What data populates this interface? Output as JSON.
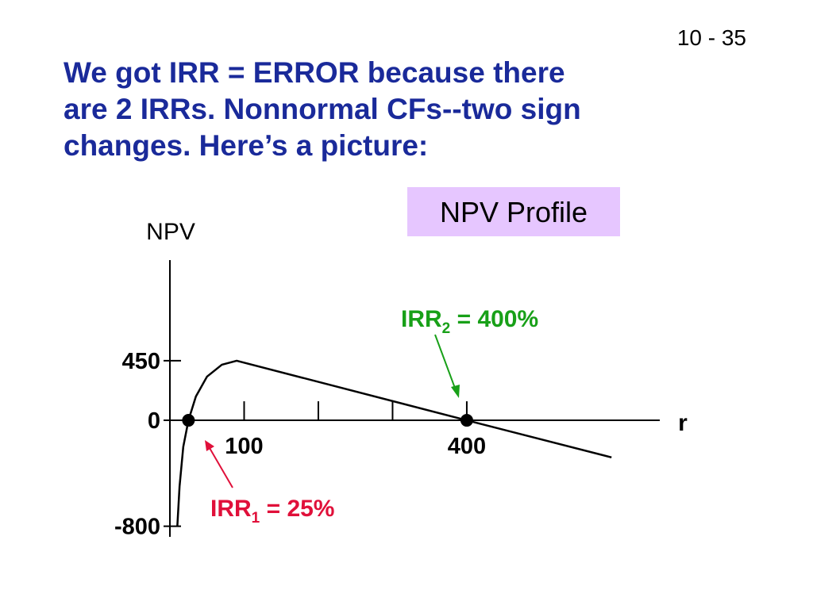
{
  "slide_number": "10 - 35",
  "title_lines": [
    "We got IRR = ERROR because there",
    "are 2 IRRs.  Nonnormal CFs--two sign",
    "changes.  Here’s a picture:"
  ],
  "chart_data": {
    "type": "line",
    "title": "NPV Profile",
    "ylabel": "NPV",
    "xlabel": "r",
    "x": [
      10,
      13,
      18,
      25,
      35,
      50,
      70,
      90,
      400,
      595
    ],
    "series": [
      {
        "color": "#000000",
        "values": [
          -800,
          -500,
          -200,
          0,
          180,
          330,
          420,
          450,
          0,
          -280
        ]
      }
    ],
    "points": [
      {
        "x": 25,
        "y": 0
      },
      {
        "x": 400,
        "y": 0
      }
    ],
    "xlim": [
      0,
      660
    ],
    "ylim": [
      -880,
      1210
    ],
    "xticks": [
      {
        "value": 100,
        "label": "100"
      },
      {
        "value": 200,
        "label": null
      },
      {
        "value": 300,
        "label": null
      },
      {
        "value": 400,
        "label": "400"
      }
    ],
    "yticks": [
      -800,
      0,
      450
    ],
    "annotations": [
      {
        "text": "IRR",
        "sub": "2",
        "rest": " = 400%",
        "color": "#18a018"
      },
      {
        "text": "IRR",
        "sub": "1",
        "rest": " = 25%",
        "color": "#e0103a"
      }
    ]
  }
}
